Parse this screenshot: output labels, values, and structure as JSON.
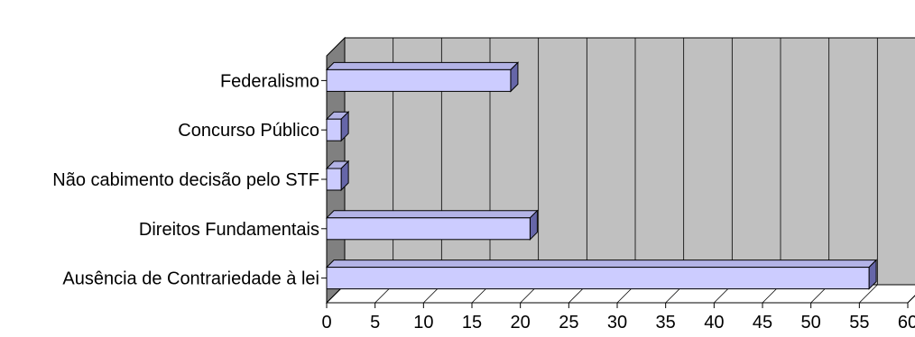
{
  "chart_data": {
    "type": "bar",
    "orientation": "horizontal",
    "style": "3d",
    "title": "",
    "xlabel": "",
    "ylabel": "",
    "categories": [
      "Federalismo",
      "Concurso Público",
      "Não cabimento decisão pelo STF",
      "Direitos Fundamentais",
      "Ausência de Contrariedade à lei"
    ],
    "values": [
      19,
      1.5,
      1.5,
      21,
      56
    ],
    "xlim": [
      0,
      60
    ],
    "xticks": [
      "0",
      "5",
      "10",
      "15",
      "20",
      "25",
      "30",
      "35",
      "40",
      "45",
      "50",
      "55",
      "60"
    ],
    "grid": true,
    "legend": "none",
    "colors": {
      "bar_face": "#ccccff",
      "bar_top": "#b3b3e6",
      "bar_side": "#6666a8",
      "back_wall": "#c0c0c0",
      "side_wall": "#808080",
      "floor": "#ffffff",
      "grid": "#000000"
    }
  }
}
